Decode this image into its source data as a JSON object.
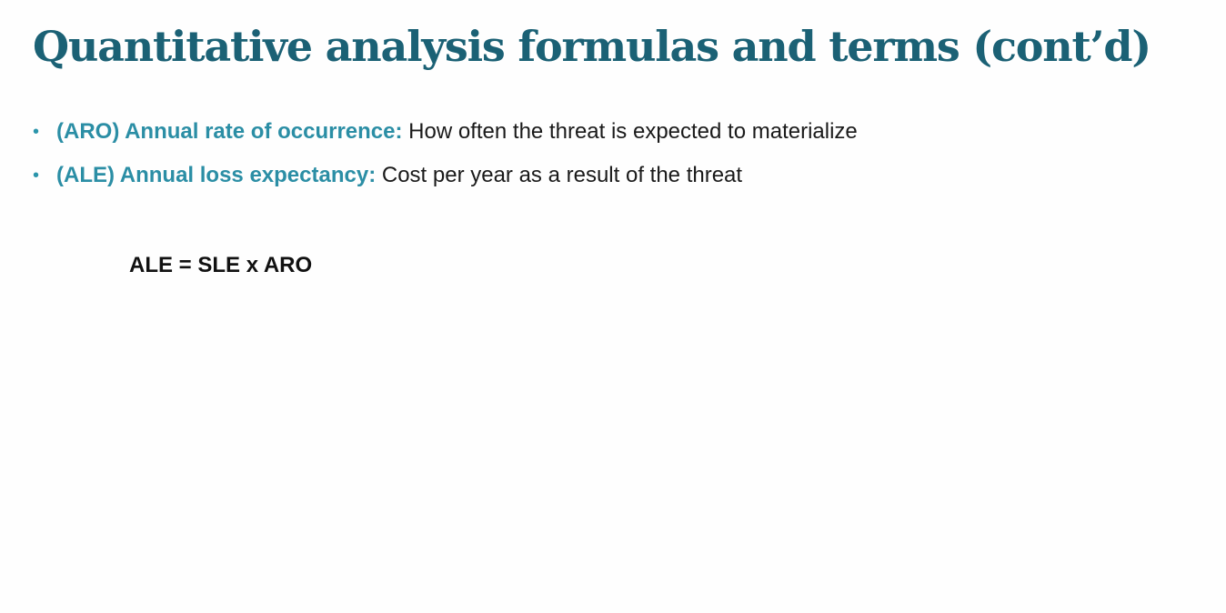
{
  "slide": {
    "title": "Quantitative analysis formulas and terms (cont’d)",
    "bullets": [
      {
        "bullet": "•",
        "term": "(ARO) Annual rate of occurrence:",
        "definition": "How often the threat is expected to materialize"
      },
      {
        "bullet": "•",
        "term": "(ALE) Annual loss expectancy:",
        "definition": "Cost per year as a result of the threat"
      }
    ],
    "formula": "ALE = SLE x ARO"
  },
  "colors": {
    "title": "#1b6175",
    "term": "#2b8ea5",
    "bullet": "#2b95ab",
    "body_text": "#1a1a1a",
    "background": "#fefefe"
  }
}
